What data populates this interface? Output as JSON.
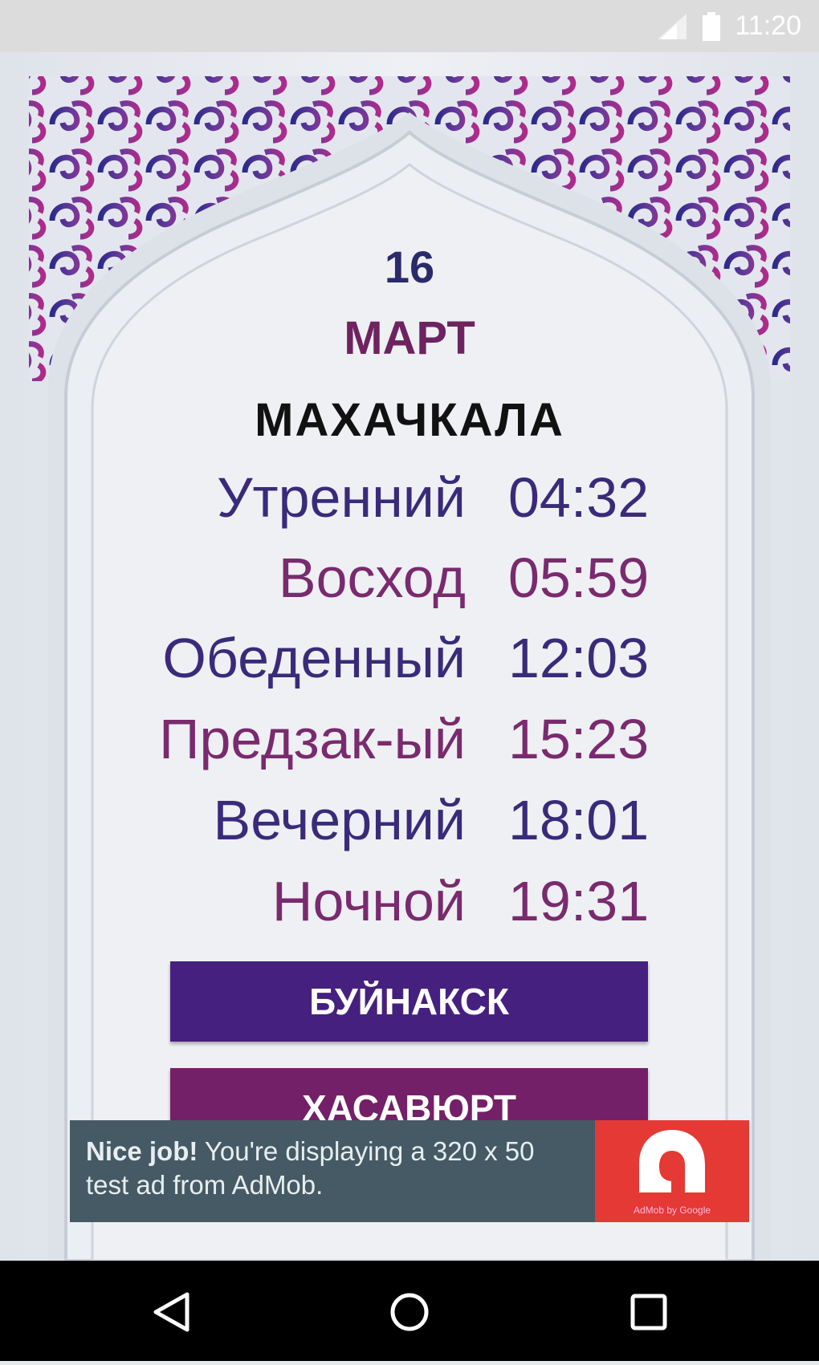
{
  "status": {
    "time": "11:20",
    "icons": [
      "signal-icon",
      "battery-icon"
    ]
  },
  "date": {
    "day": "16",
    "month": "МАРТ"
  },
  "city": "МАХАЧКАЛА",
  "prayers": [
    {
      "name": "Утренний",
      "time": "04:32",
      "color": "#3a2a7a"
    },
    {
      "name": "Восход",
      "time": "05:59",
      "color": "#7a2a6e"
    },
    {
      "name": "Обеденный",
      "time": "12:03",
      "color": "#3a2a7a"
    },
    {
      "name": "Предзак-ый",
      "time": "15:23",
      "color": "#7a2a6e"
    },
    {
      "name": "Вечерний",
      "time": "18:01",
      "color": "#3a2a7a"
    },
    {
      "name": "Ночной",
      "time": "19:31",
      "color": "#7a2a6e"
    }
  ],
  "buttons": [
    {
      "label": "БУЙНАКСК",
      "color": "#46207f"
    },
    {
      "label": "ХАСАВЮРТ",
      "color": "#742068"
    }
  ],
  "ad": {
    "bold": "Nice job!",
    "text": " You're displaying a 320 x 50 test ad from AdMob.",
    "brand": "AdMob by Google"
  },
  "nav": {
    "icons": [
      "back-icon",
      "home-icon",
      "recents-icon"
    ]
  }
}
